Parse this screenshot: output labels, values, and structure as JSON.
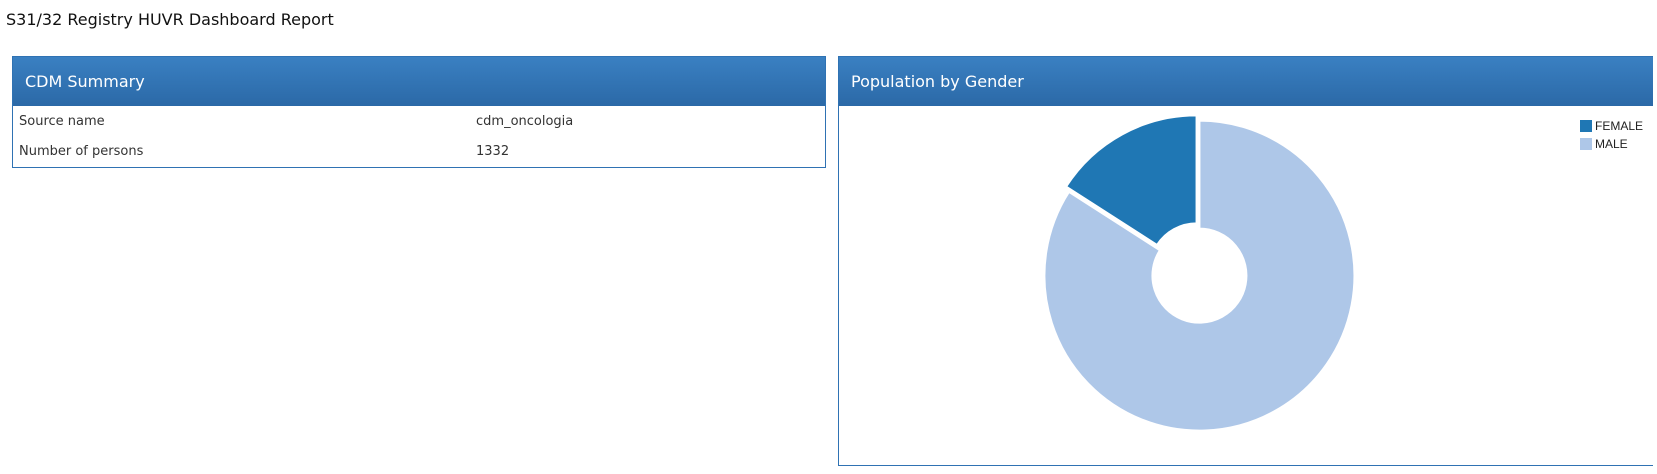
{
  "page": {
    "title": "S31/32 Registry HUVR Dashboard Report"
  },
  "summary": {
    "header": "CDM Summary",
    "rows": [
      {
        "label": "Source name",
        "value": "cdm_oncologia"
      },
      {
        "label": "Number of persons",
        "value": "1332"
      }
    ]
  },
  "gender": {
    "header": "Population by Gender",
    "chart_data": {
      "type": "pie",
      "title": "",
      "categories": [
        "FEMALE",
        "MALE"
      ],
      "values": [
        212,
        1120
      ],
      "colors": [
        "#1f77b4",
        "#aec7e8"
      ],
      "donut": true,
      "legend": "top-right"
    }
  }
}
